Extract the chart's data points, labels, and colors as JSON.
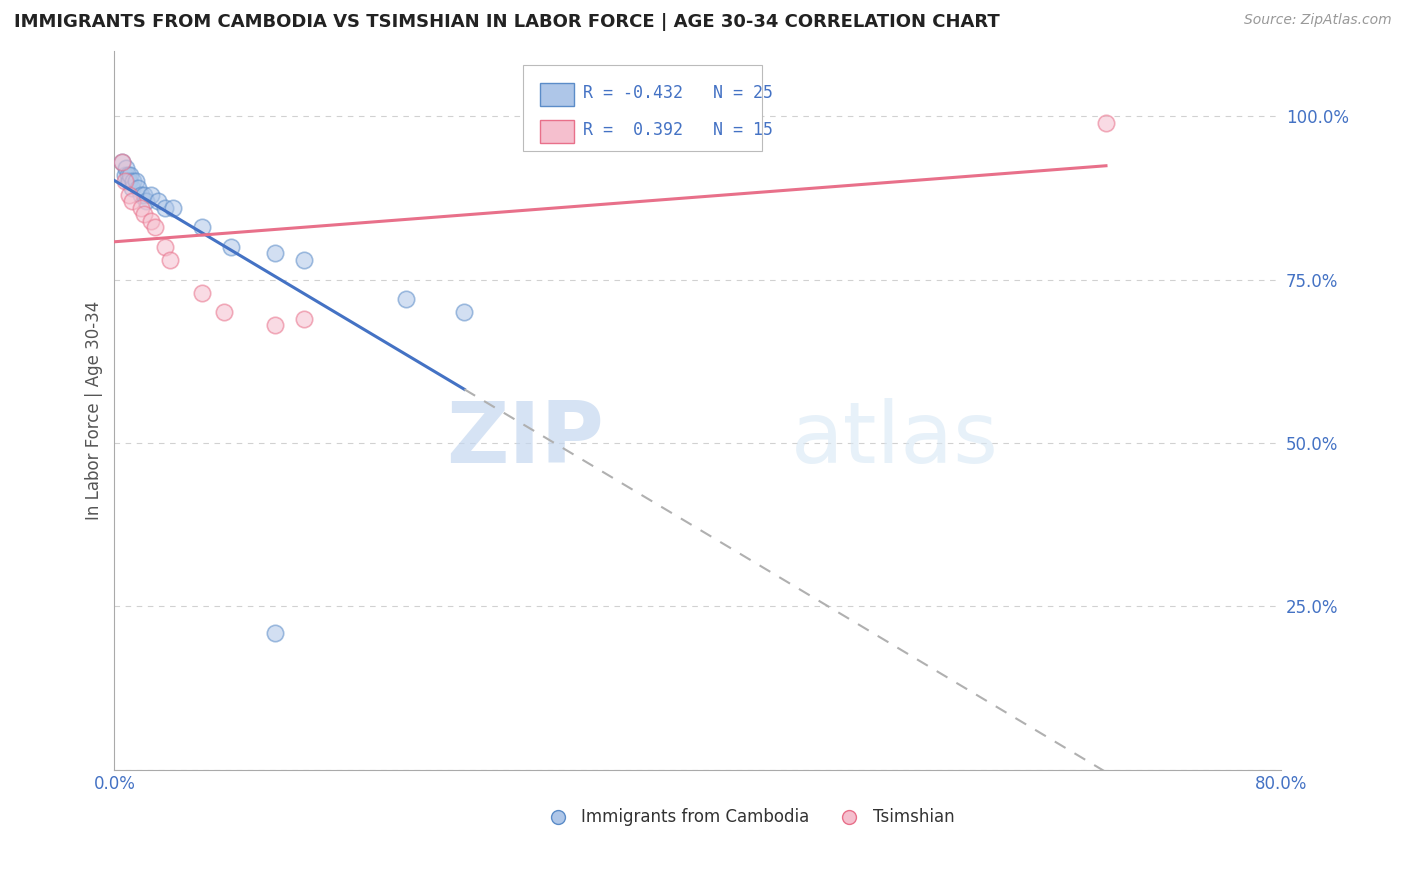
{
  "title": "IMMIGRANTS FROM CAMBODIA VS TSIMSHIAN IN LABOR FORCE | AGE 30-34 CORRELATION CHART",
  "source_text": "Source: ZipAtlas.com",
  "ylabel": "In Labor Force | Age 30-34",
  "xlim": [
    0.0,
    0.8
  ],
  "ylim": [
    0.0,
    1.1
  ],
  "x_ticks": [
    0.0,
    0.1,
    0.2,
    0.3,
    0.4,
    0.5,
    0.6,
    0.7,
    0.8
  ],
  "y_ticks": [
    0.0,
    0.25,
    0.5,
    0.75,
    1.0
  ],
  "cambodia_x": [
    0.005,
    0.007,
    0.008,
    0.009,
    0.01,
    0.01,
    0.011,
    0.012,
    0.013,
    0.015,
    0.016,
    0.018,
    0.02,
    0.022,
    0.025,
    0.03,
    0.035,
    0.04,
    0.06,
    0.08,
    0.11,
    0.13,
    0.2,
    0.24,
    0.11
  ],
  "cambodia_y": [
    0.93,
    0.91,
    0.92,
    0.91,
    0.9,
    0.9,
    0.91,
    0.89,
    0.9,
    0.9,
    0.89,
    0.88,
    0.88,
    0.87,
    0.88,
    0.87,
    0.86,
    0.86,
    0.83,
    0.8,
    0.79,
    0.78,
    0.72,
    0.7,
    0.21
  ],
  "tsimshian_x": [
    0.005,
    0.007,
    0.01,
    0.012,
    0.018,
    0.02,
    0.025,
    0.028,
    0.035,
    0.038,
    0.06,
    0.075,
    0.11,
    0.13,
    0.68
  ],
  "tsimshian_y": [
    0.93,
    0.9,
    0.88,
    0.87,
    0.86,
    0.85,
    0.84,
    0.83,
    0.8,
    0.78,
    0.73,
    0.7,
    0.68,
    0.69,
    0.99
  ],
  "cambodia_color": "#aec6e8",
  "cambodia_edge_color": "#5b8cc8",
  "tsimshian_color": "#f5bfce",
  "tsimshian_edge_color": "#e8708a",
  "cambodia_line_color": "#4472c4",
  "tsimshian_line_color": "#e8708a",
  "trend_ext_color": "#b0b0b0",
  "R_cambodia": -0.432,
  "N_cambodia": 25,
  "R_tsimshian": 0.392,
  "N_tsimshian": 15,
  "legend_label_cambodia": "Immigrants from Cambodia",
  "legend_label_tsimshian": "Tsimshian",
  "watermark_zip": "ZIP",
  "watermark_atlas": "atlas",
  "background_color": "#ffffff",
  "grid_color": "#cccccc",
  "marker_size": 140,
  "marker_alpha": 0.55
}
